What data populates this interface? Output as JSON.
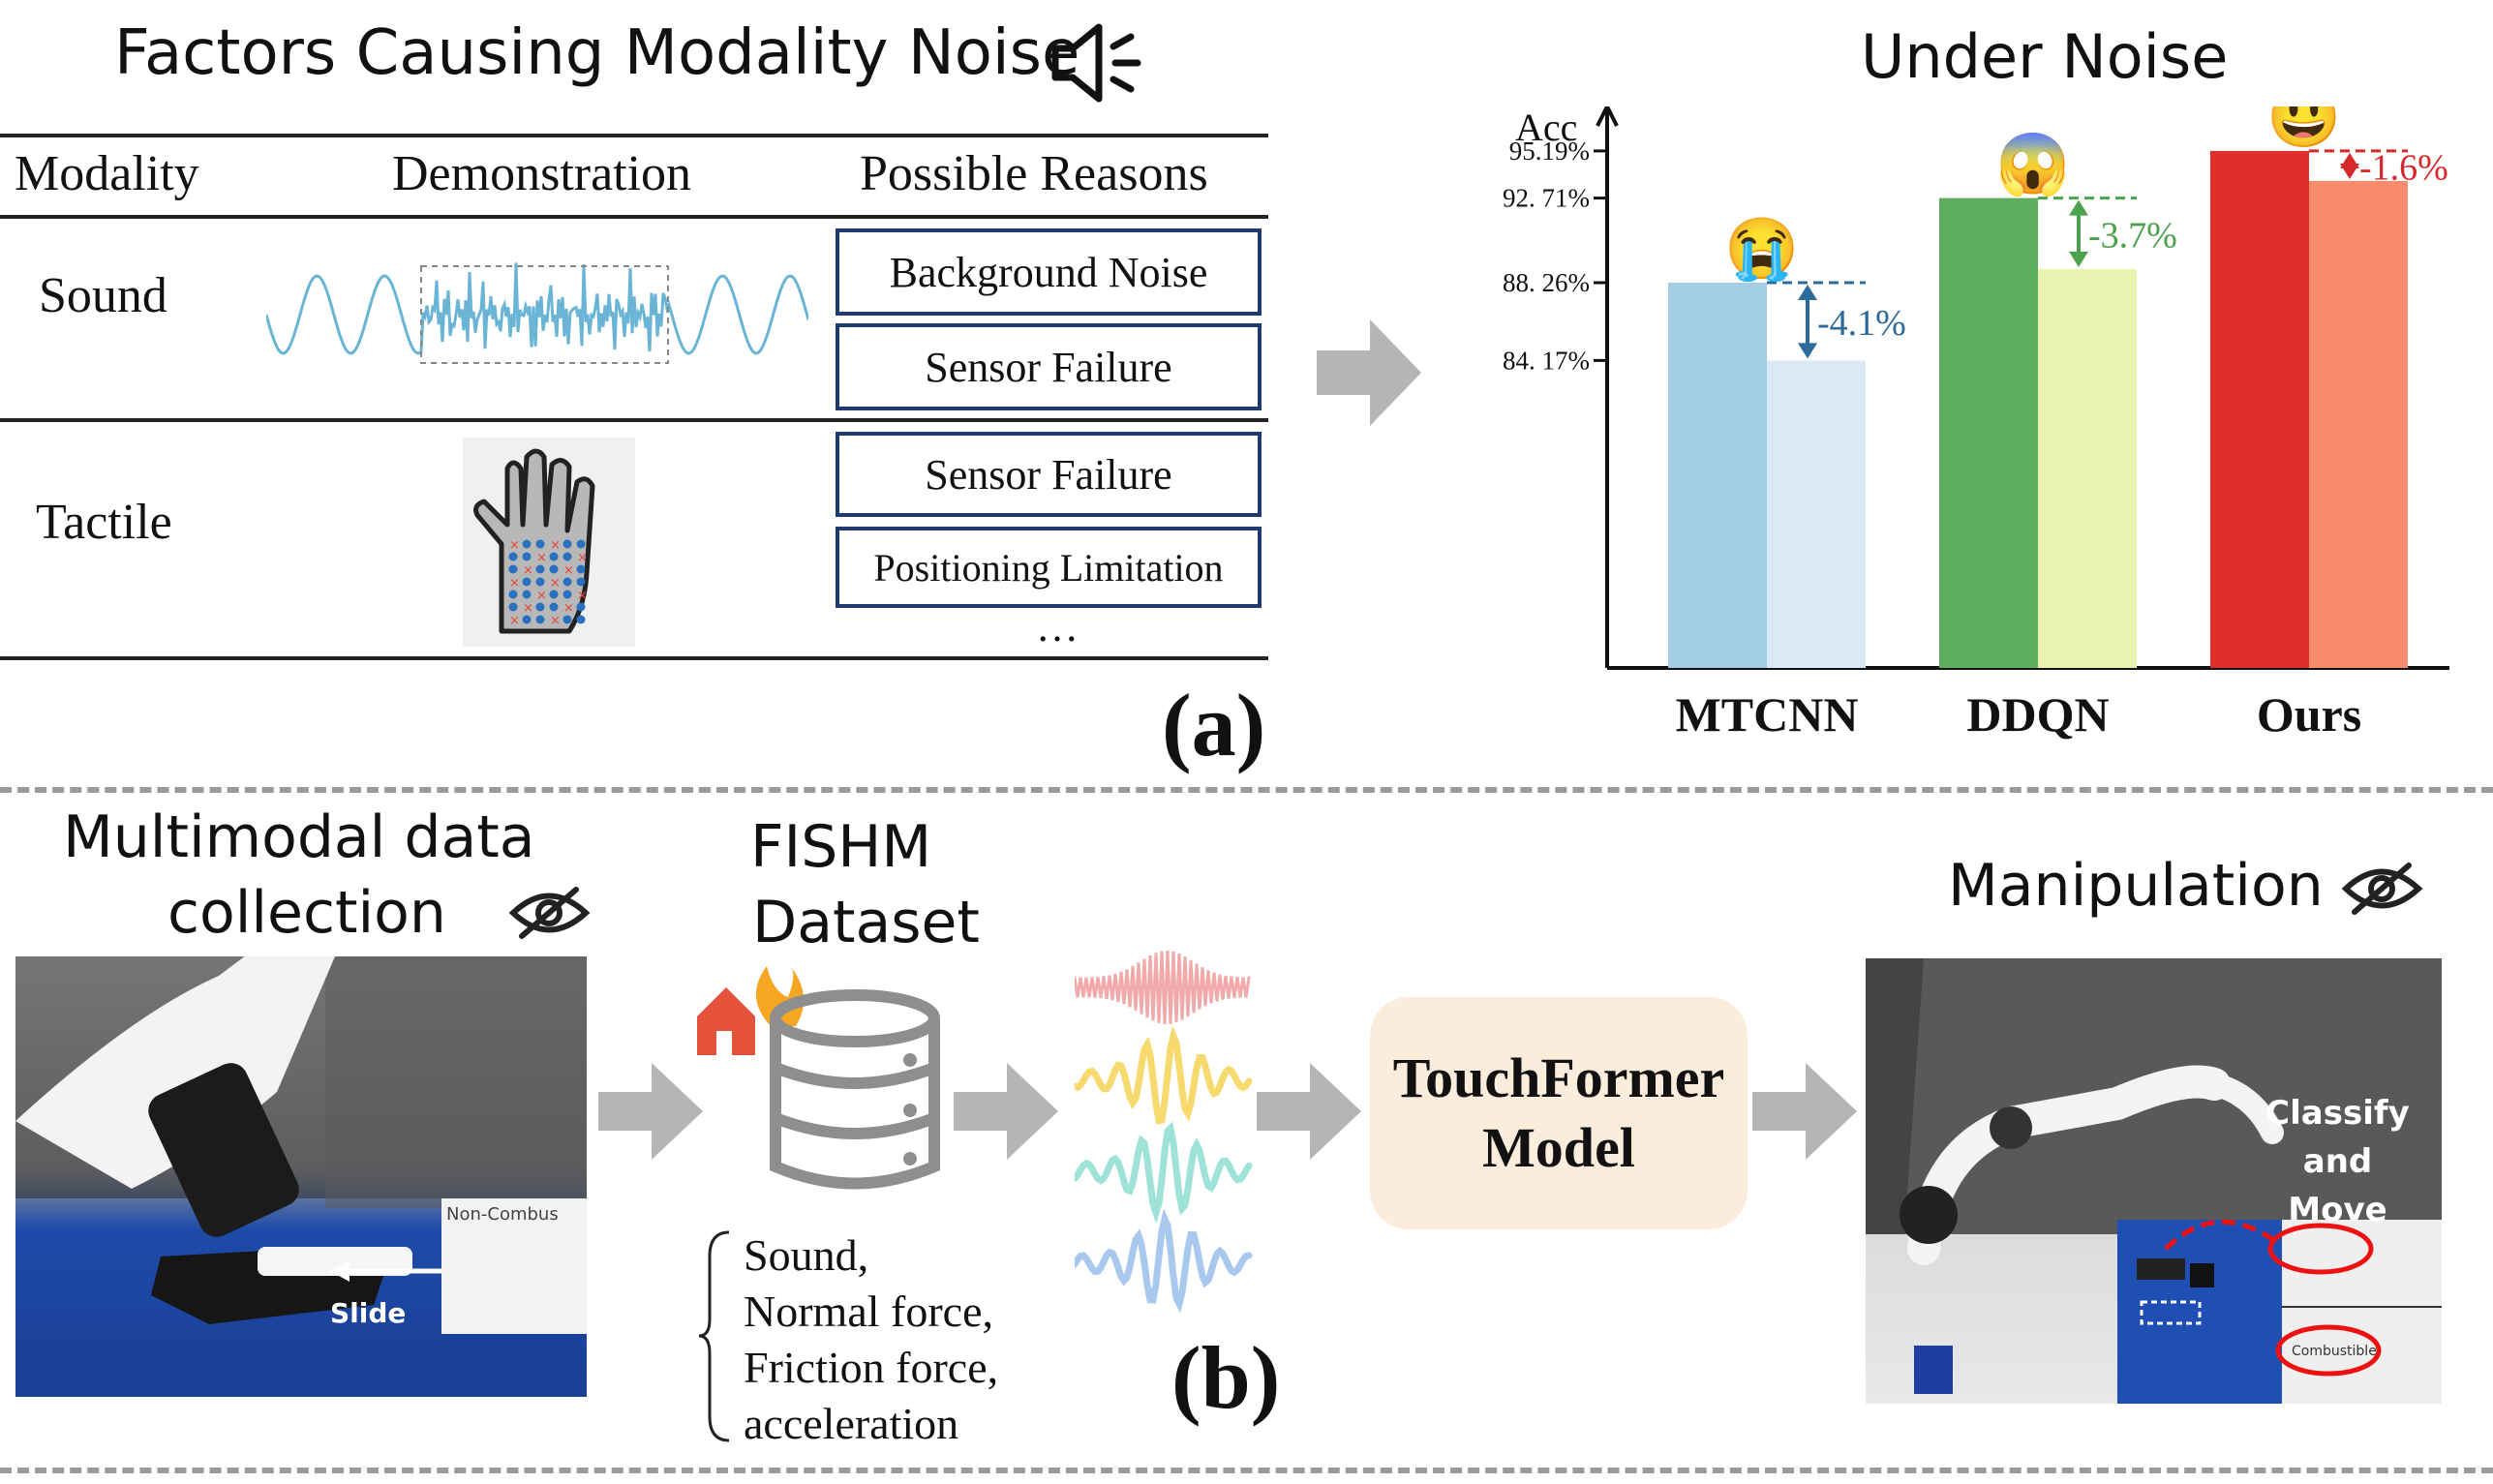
{
  "panel_a": {
    "title": "Factors Causing Modality Noise",
    "headers": [
      "Modality",
      "Demonstration",
      "Possible Reasons"
    ],
    "rows": [
      {
        "modality": "Sound",
        "reasons": [
          "Background Noise",
          "Sensor Failure"
        ]
      },
      {
        "modality": "Tactile",
        "reasons": [
          "Sensor Failure",
          "Positioning Limitation"
        ]
      }
    ],
    "ellipsis": "…",
    "label": "(a)"
  },
  "chart": {
    "title": "Under Noise",
    "y_label": "Acc",
    "y_ticks": [
      "95.19%",
      "92. 71%",
      "88. 26%",
      "84. 17%"
    ],
    "bars": [
      {
        "name": "MTCNN",
        "clean": 88.26,
        "noisy": 84.17,
        "drop": "-4.1%",
        "emoji": "😭"
      },
      {
        "name": "DDQN",
        "clean": 92.71,
        "noisy": 88.98,
        "drop": "-3.7%",
        "emoji": "😱"
      },
      {
        "name": "Ours",
        "clean": 95.19,
        "noisy": 93.61,
        "drop": "-1.6%",
        "emoji": "😃"
      }
    ]
  },
  "chart_data": {
    "type": "bar",
    "title": "Under Noise",
    "ylabel": "Acc",
    "categories": [
      "MTCNN",
      "DDQN",
      "Ours"
    ],
    "series": [
      {
        "values": [
          88.26,
          92.71,
          95.19
        ]
      },
      {
        "values": [
          84.17,
          88.98,
          93.61
        ]
      }
    ],
    "annotations": [
      "-4.1%",
      "-3.7%",
      "-1.6%"
    ],
    "ylim": [
      68,
      96
    ]
  },
  "panel_b": {
    "collection_title_line1": "Multimodal data",
    "collection_title_line2": "collection",
    "slide_label": "Slide",
    "dataset_line1": "FISHM",
    "dataset_line2": "Dataset",
    "modalities": [
      "Sound,",
      "Normal force,",
      "Friction force,",
      "acceleration"
    ],
    "model_line1": "TouchFormer",
    "model_line2": "Model",
    "manipulation_title": "Manipulation",
    "classify_line1": "Classify and",
    "classify_line2": "Move",
    "bin_non": "Non-Combus",
    "bin_comb": "Combustible",
    "label": "(b)"
  },
  "colors": {
    "mtcnn": "#a3cde3",
    "mtcnn_noisy": "#dbe9f6",
    "ddqn": "#5cae5c",
    "ddqn_noisy": "#eaf4b0",
    "ours": "#de2f2a",
    "ours_noisy": "#f88c6c",
    "box_border": "#1f3a6e",
    "arrow": "#b5b5b5"
  }
}
